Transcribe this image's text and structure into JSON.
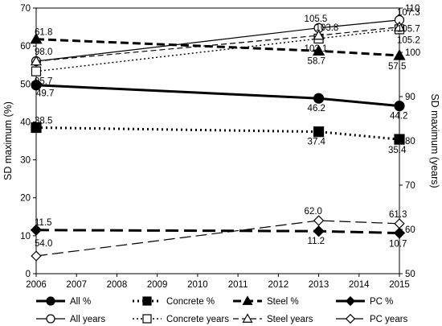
{
  "chart_data": {
    "type": "line",
    "x": [
      2006,
      2013,
      2015
    ],
    "x_ticks": [
      "2006",
      "2007",
      "2008",
      "2009",
      "2010",
      "2011",
      "2012",
      "2013",
      "2014",
      "2015"
    ],
    "ylabel_left": "SD maximum (%)",
    "ylabel_right": "SD maximum  (years)",
    "ylim_left": [
      0,
      70
    ],
    "ylim_right": [
      50,
      110
    ],
    "y_ticks_left": [
      "0",
      "10",
      "20",
      "30",
      "40",
      "50",
      "60",
      "70"
    ],
    "y_ticks_right": [
      "50",
      "60",
      "70",
      "80",
      "90",
      "100",
      "110"
    ],
    "grid": false,
    "legend_position": "bottom",
    "series": [
      {
        "name": "All %",
        "axis": "left",
        "values": [
          49.7,
          46.2,
          44.2
        ],
        "labels": [
          "49.7",
          "46.2",
          "44.2"
        ],
        "marker": "circle",
        "fill": "#000000",
        "line": "solid-thick"
      },
      {
        "name": "Concrete %",
        "axis": "left",
        "values": [
          38.5,
          37.4,
          35.4
        ],
        "labels": [
          "38.5",
          "37.4",
          "35.4"
        ],
        "marker": "square",
        "fill": "#000000",
        "line": "dotted-thick"
      },
      {
        "name": "Steel %",
        "axis": "left",
        "values": [
          61.8,
          58.7,
          57.5
        ],
        "labels": [
          "61.8",
          "58.7",
          "57.5"
        ],
        "marker": "triangle",
        "fill": "#000000",
        "line": "dashed-thick"
      },
      {
        "name": "PC %",
        "axis": "left",
        "values": [
          11.5,
          11.2,
          10.7
        ],
        "labels": [
          "11.5",
          "11.2",
          "10.7"
        ],
        "marker": "diamond",
        "fill": "#000000",
        "line": "longdash-thick"
      },
      {
        "name": "All years",
        "axis": "right",
        "values": [
          98.0,
          105.5,
          107.3
        ],
        "labels": [
          "98.0",
          "105.5",
          "107.3"
        ],
        "marker": "circle",
        "fill": "#ffffff",
        "line": "solid-thin"
      },
      {
        "name": "Concrete years",
        "axis": "right",
        "values": [
          95.7,
          103.1,
          105.2
        ],
        "labels": [
          "95.7",
          "103.1",
          "105.2"
        ],
        "marker": "square",
        "fill": "#ffffff",
        "line": "dotted-thin"
      },
      {
        "name": "Steel years",
        "axis": "right",
        "values": [
          98.0,
          103.8,
          105.7
        ],
        "labels": [
          "",
          "103.8",
          "105.7"
        ],
        "marker": "triangle",
        "fill": "#ffffff",
        "line": "dashed-thin"
      },
      {
        "name": "PC years",
        "axis": "right",
        "values": [
          54.0,
          62.0,
          61.3
        ],
        "labels": [
          "54.0",
          "62.0",
          "61.3"
        ],
        "marker": "diamond",
        "fill": "#ffffff",
        "line": "longdash-thin"
      }
    ]
  }
}
